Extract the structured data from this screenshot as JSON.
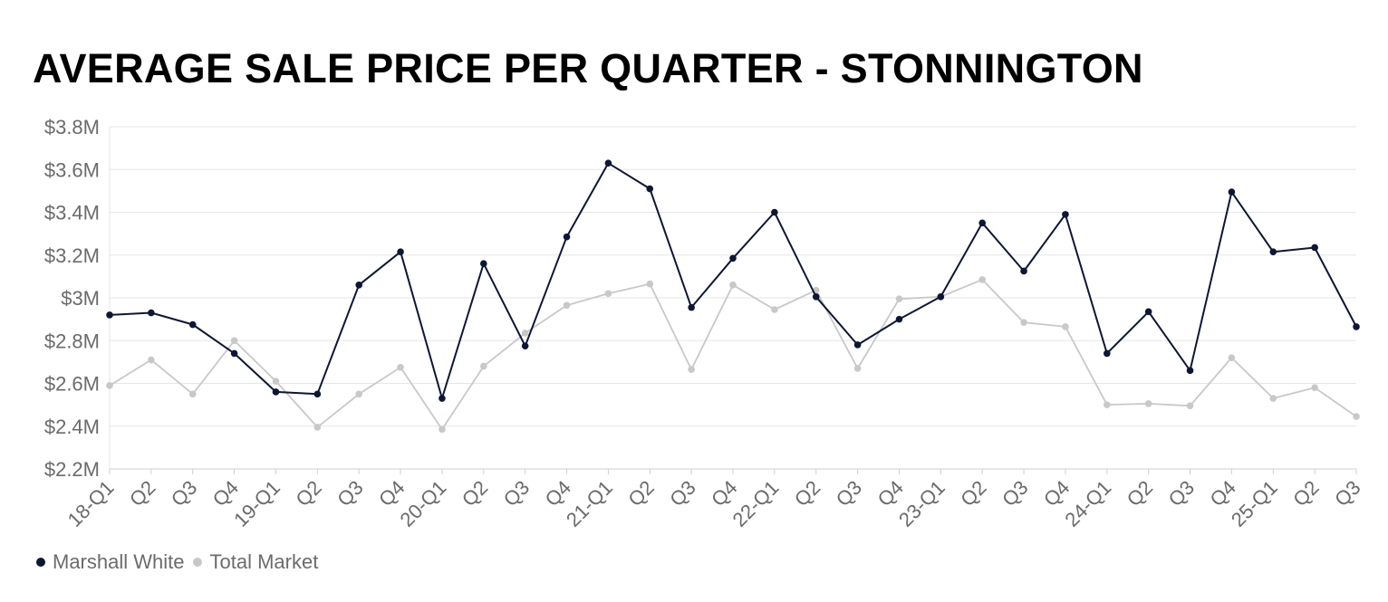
{
  "chart_data": {
    "type": "line",
    "title": "AVERAGE SALE PRICE PER QUARTER - STONNINGTON",
    "xlabel": "",
    "ylabel": "",
    "categories": [
      "18-Q1",
      "Q2",
      "Q3",
      "Q4",
      "19-Q1",
      "Q2",
      "Q3",
      "Q4",
      "20-Q1",
      "Q2",
      "Q3",
      "Q4",
      "21-Q1",
      "Q2",
      "Q3",
      "Q4",
      "22-Q1",
      "Q2",
      "Q3",
      "Q4",
      "23-Q1",
      "Q2",
      "Q3",
      "Q4",
      "24-Q1",
      "Q2",
      "Q3",
      "Q4",
      "25-Q1",
      "Q2",
      "Q3"
    ],
    "yticks": [
      2.2,
      2.4,
      2.6,
      2.8,
      3.0,
      3.2,
      3.4,
      3.6,
      3.8
    ],
    "ytick_labels": [
      "$2.2M",
      "$2.4M",
      "$2.6M",
      "$2.8M",
      "$3M",
      "$3.2M",
      "$3.4M",
      "$3.6M",
      "$3.8M"
    ],
    "ylim": [
      2.2,
      3.8
    ],
    "grid": true,
    "legend_position": "bottom-left",
    "series": [
      {
        "name": "Marshall White",
        "color": "#0d1733",
        "values": [
          2.92,
          2.93,
          2.875,
          2.74,
          2.56,
          2.55,
          3.06,
          3.215,
          2.53,
          3.16,
          2.775,
          3.285,
          3.63,
          3.51,
          2.955,
          3.185,
          3.4,
          3.005,
          2.78,
          2.9,
          3.005,
          3.35,
          3.125,
          3.39,
          2.74,
          2.935,
          2.66,
          3.495,
          3.215,
          3.235,
          2.865
        ]
      },
      {
        "name": "Total Market",
        "color": "#c8c8c8",
        "values": [
          2.59,
          2.71,
          2.55,
          2.8,
          2.61,
          2.395,
          2.55,
          2.675,
          2.385,
          2.68,
          2.835,
          2.965,
          3.02,
          3.065,
          2.665,
          3.06,
          2.945,
          3.035,
          2.67,
          2.995,
          3.005,
          3.085,
          2.885,
          2.865,
          2.5,
          2.505,
          2.495,
          2.72,
          2.53,
          2.58,
          2.445
        ]
      }
    ]
  }
}
